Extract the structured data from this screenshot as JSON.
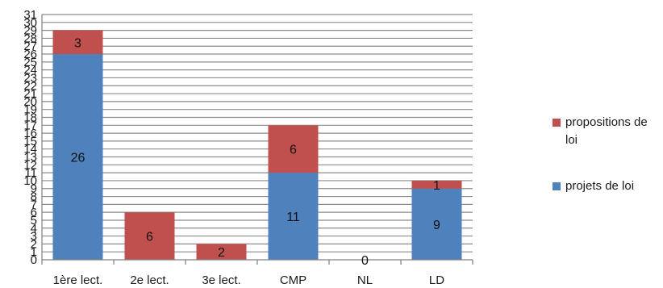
{
  "chart_data": {
    "type": "bar",
    "stacked": true,
    "categories": [
      "1ère lect.",
      "2e lect.",
      "3e lect.",
      "CMP",
      "NL",
      "LD"
    ],
    "series": [
      {
        "name": "projets de loi",
        "values": [
          26,
          0,
          0,
          11,
          0,
          9
        ],
        "color": "#4f81bd"
      },
      {
        "name": "propositions de loi",
        "values": [
          3,
          6,
          2,
          6,
          0,
          1
        ],
        "color": "#c0504d"
      }
    ],
    "data_labels": [
      [
        "26",
        null,
        null,
        "11",
        "0",
        "9"
      ],
      [
        "3",
        "6",
        "2",
        "6",
        null,
        "1"
      ]
    ],
    "ylim": [
      0,
      31
    ],
    "yticks": [
      0,
      1,
      2,
      3,
      4,
      5,
      6,
      7,
      8,
      9,
      10,
      11,
      12,
      13,
      14,
      15,
      16,
      17,
      18,
      19,
      20,
      21,
      22,
      23,
      24,
      25,
      26,
      27,
      28,
      29,
      30,
      31
    ],
    "title": "",
    "xlabel": "",
    "ylabel": "",
    "grid": true,
    "legend": {
      "position": "right",
      "order": [
        "propositions de loi",
        "projets de loi"
      ],
      "label_lines": [
        [
          "propositions de",
          "loi"
        ],
        [
          "projets de loi"
        ]
      ]
    }
  }
}
